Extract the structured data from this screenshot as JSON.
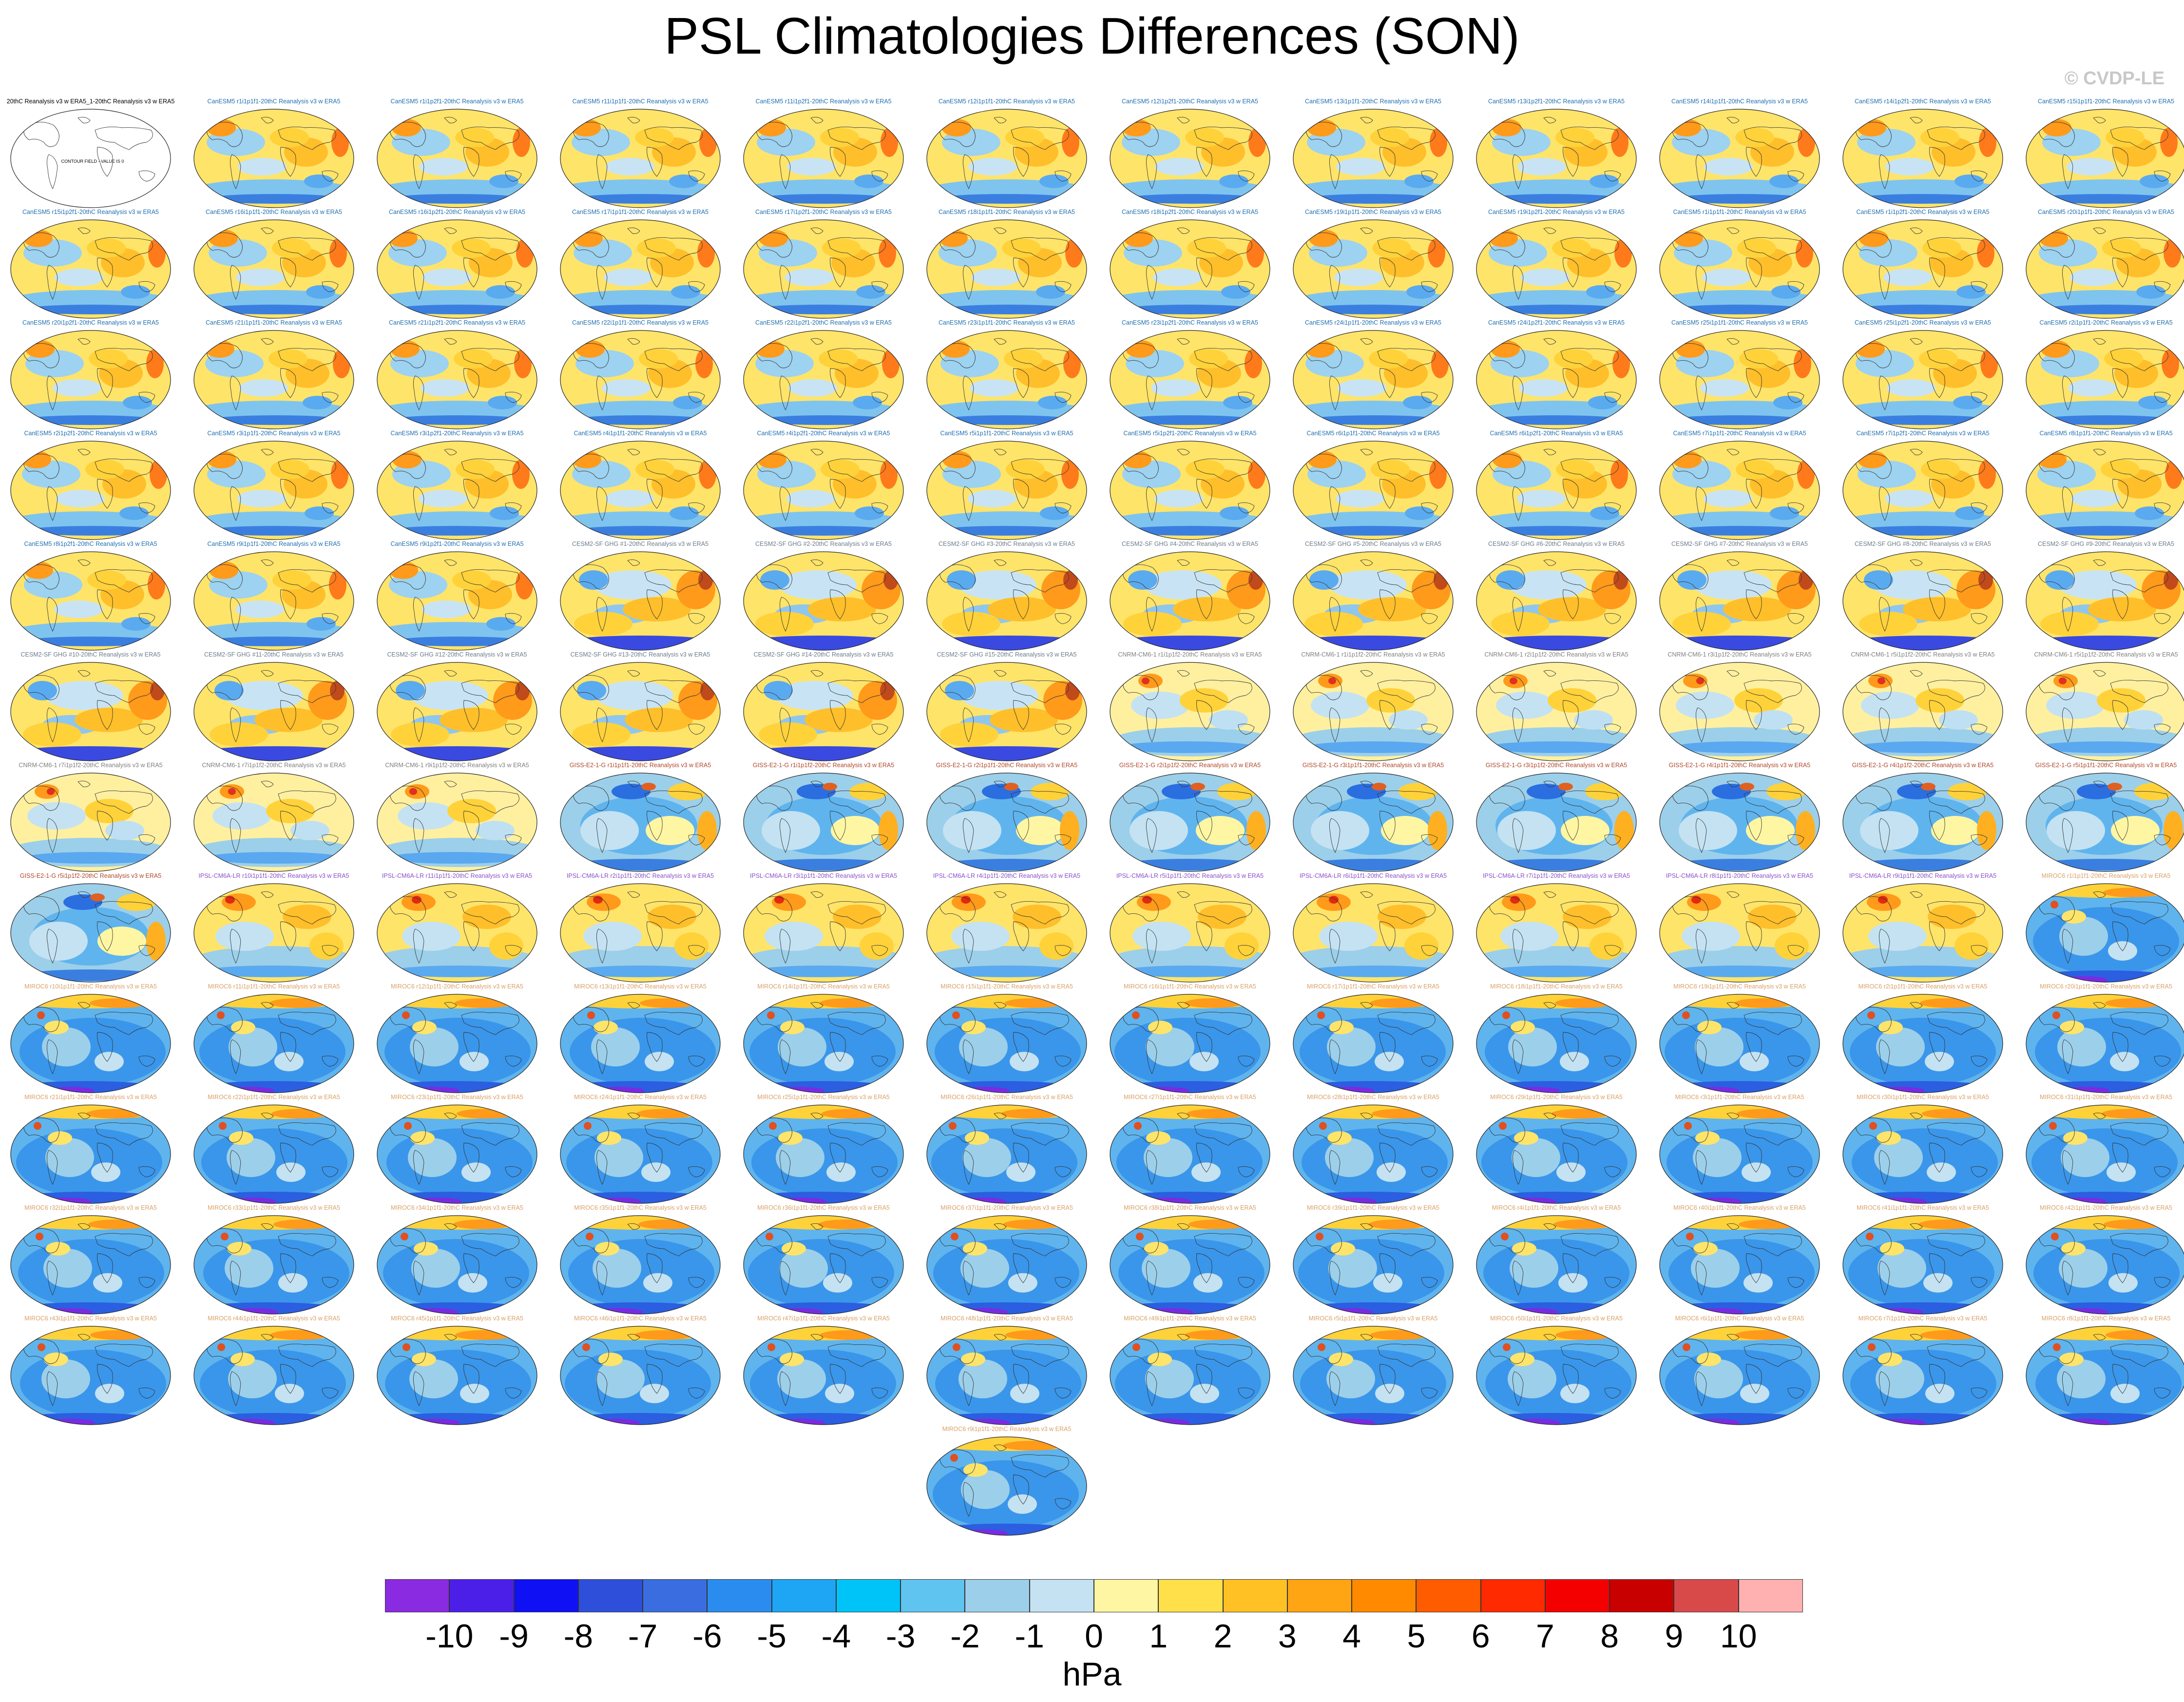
{
  "title": "PSL Climatologies Differences (SON)",
  "watermark": "© CVDP-LE",
  "units": "hPa",
  "colorbar": {
    "labels": [
      "-10",
      "-9",
      "-8",
      "-7",
      "-6",
      "-5",
      "-4",
      "-3",
      "-2",
      "-1",
      "0",
      "1",
      "2",
      "3",
      "4",
      "5",
      "6",
      "7",
      "8",
      "9",
      "10"
    ],
    "colors": [
      "#8a2be2",
      "#4b1fe8",
      "#1010f5",
      "#2e4fd9",
      "#3a6ee0",
      "#2b8cf0",
      "#1ea6f5",
      "#00c3f7",
      "#5fc4f0",
      "#9ccfea",
      "#c4e2f2",
      "#fff6a3",
      "#ffe04a",
      "#ffc124",
      "#ffa412",
      "#ff8a00",
      "#ff5c00",
      "#ff2a00",
      "#f50000",
      "#c80000",
      "#d84a4a",
      "#ffb0b0"
    ]
  },
  "panel_titles": [
    "20thC Reanalysis v3 w ERA5_1-20thC Reanalysis v3 w ERA5",
    "CanESM5 r1i1p1f1-20thC Reanalysis v3 w ERA5",
    "CanESM5 r1i1p2f1-20thC Reanalysis v3 w ERA5",
    "CanESM5 r11i1p1f1-20thC Reanalysis v3 w ERA5",
    "CanESM5 r11i1p2f1-20thC Reanalysis v3 w ERA5",
    "CanESM5 r12i1p1f1-20thC Reanalysis v3 w ERA5",
    "CanESM5 r12i1p2f1-20thC Reanalysis v3 w ERA5",
    "CanESM5 r13i1p1f1-20thC Reanalysis v3 w ERA5",
    "CanESM5 r13i1p2f1-20thC Reanalysis v3 w ERA5",
    "CanESM5 r14i1p1f1-20thC Reanalysis v3 w ERA5",
    "CanESM5 r14i1p2f1-20thC Reanalysis v3 w ERA5",
    "CanESM5 r15i1p1f1-20thC Reanalysis v3 w ERA5",
    "CanESM5 r15i1p2f1-20thC Reanalysis v3 w ERA5",
    "CanESM5 r16i1p1f1-20thC Reanalysis v3 w ERA5",
    "CanESM5 r16i1p2f1-20thC Reanalysis v3 w ERA5",
    "CanESM5 r17i1p1f1-20thC Reanalysis v3 w ERA5",
    "CanESM5 r17i1p2f1-20thC Reanalysis v3 w ERA5",
    "CanESM5 r18i1p1f1-20thC Reanalysis v3 w ERA5",
    "CanESM5 r18i1p2f1-20thC Reanalysis v3 w ERA5",
    "CanESM5 r19i1p1f1-20thC Reanalysis v3 w ERA5",
    "CanESM5 r19i1p2f1-20thC Reanalysis v3 w ERA5",
    "CanESM5 r1i1p1f1-20thC Reanalysis v3 w ERA5",
    "CanESM5 r1i1p2f1-20thC Reanalysis v3 w ERA5",
    "CanESM5 r20i1p1f1-20thC Reanalysis v3 w ERA5",
    "CanESM5 r20i1p2f1-20thC Reanalysis v3 w ERA5",
    "CanESM5 r21i1p1f1-20thC Reanalysis v3 w ERA5",
    "CanESM5 r21i1p2f1-20thC Reanalysis v3 w ERA5",
    "CanESM5 r22i1p1f1-20thC Reanalysis v3 w ERA5",
    "CanESM5 r22i1p2f1-20thC Reanalysis v3 w ERA5",
    "CanESM5 r23i1p1f1-20thC Reanalysis v3 w ERA5",
    "CanESM5 r23i1p2f1-20thC Reanalysis v3 w ERA5",
    "CanESM5 r24i1p1f1-20thC Reanalysis v3 w ERA5",
    "CanESM5 r24i1p2f1-20thC Reanalysis v3 w ERA5",
    "CanESM5 r25i1p1f1-20thC Reanalysis v3 w ERA5",
    "CanESM5 r25i1p2f1-20thC Reanalysis v3 w ERA5",
    "CanESM5 r2i1p1f1-20thC Reanalysis v3 w ERA5",
    "CanESM5 r2i1p2f1-20thC Reanalysis v3 w ERA5",
    "CanESM5 r3i1p1f1-20thC Reanalysis v3 w ERA5",
    "CanESM5 r3i1p2f1-20thC Reanalysis v3 w ERA5",
    "CanESM5 r4i1p1f1-20thC Reanalysis v3 w ERA5",
    "CanESM5 r4i1p2f1-20thC Reanalysis v3 w ERA5",
    "CanESM5 r5i1p1f1-20thC Reanalysis v3 w ERA5",
    "CanESM5 r5i1p2f1-20thC Reanalysis v3 w ERA5",
    "CanESM5 r6i1p1f1-20thC Reanalysis v3 w ERA5",
    "CanESM5 r6i1p2f1-20thC Reanalysis v3 w ERA5",
    "CanESM5 r7i1p1f1-20thC Reanalysis v3 w ERA5",
    "CanESM5 r7i1p2f1-20thC Reanalysis v3 w ERA5",
    "CanESM5 r8i1p1f1-20thC Reanalysis v3 w ERA5",
    "CanESM5 r8i1p2f1-20thC Reanalysis v3 w ERA5",
    "CanESM5 r9i1p1f1-20thC Reanalysis v3 w ERA5",
    "CanESM5 r9i1p2f1-20thC Reanalysis v3 w ERA5",
    "CESM2-SF GHG #1-20thC Reanalysis v3 w ERA5",
    "CESM2-SF GHG #2-20thC Reanalysis v3 w ERA5",
    "CESM2-SF GHG #3-20thC Reanalysis v3 w ERA5",
    "CESM2-SF GHG #4-20thC Reanalysis v3 w ERA5",
    "CESM2-SF GHG #5-20thC Reanalysis v3 w ERA5",
    "CESM2-SF GHG #6-20thC Reanalysis v3 w ERA5",
    "CESM2-SF GHG #7-20thC Reanalysis v3 w ERA5",
    "CESM2-SF GHG #8-20thC Reanalysis v3 w ERA5",
    "CESM2-SF GHG #9-20thC Reanalysis v3 w ERA5",
    "CESM2-SF GHG #10-20thC Reanalysis v3 w ERA5",
    "CESM2-SF GHG #11-20thC Reanalysis v3 w ERA5",
    "CESM2-SF GHG #12-20thC Reanalysis v3 w ERA5",
    "CESM2-SF GHG #13-20thC Reanalysis v3 w ERA5",
    "CESM2-SF GHG #14-20thC Reanalysis v3 w ERA5",
    "CESM2-SF GHG #15-20thC Reanalysis v3 w ERA5",
    "CNRM-CM6-1 r1i1p1f2-20thC Reanalysis v3 w ERA5",
    "CNRM-CM6-1 r1i1p1f2-20thC Reanalysis v3 w ERA5",
    "CNRM-CM6-1 r2i1p1f2-20thC Reanalysis v3 w ERA5",
    "CNRM-CM6-1 r3i1p1f2-20thC Reanalysis v3 w ERA5",
    "CNRM-CM6-1 r5i1p1f2-20thC Reanalysis v3 w ERA5",
    "CNRM-CM6-1 r5i1p1f2-20thC Reanalysis v3 w ERA5",
    "CNRM-CM6-1 r7i1p1f2-20thC Reanalysis v3 w ERA5",
    "CNRM-CM6-1 r7i1p1f2-20thC Reanalysis v3 w ERA5",
    "CNRM-CM6-1 r9i1p1f2-20thC Reanalysis v3 w ERA5",
    "GISS-E2-1-G r1i1p1f1-20thC Reanalysis v3 w ERA5",
    "GISS-E2-1-G r1i1p1f2-20thC Reanalysis v3 w ERA5",
    "GISS-E2-1-G r2i1p1f1-20thC Reanalysis v3 w ERA5",
    "GISS-E2-1-G r2i1p1f2-20thC Reanalysis v3 w ERA5",
    "GISS-E2-1-G r3i1p1f1-20thC Reanalysis v3 w ERA5",
    "GISS-E2-1-G r3i1p1f2-20thC Reanalysis v3 w ERA5",
    "GISS-E2-1-G r4i1p1f1-20thC Reanalysis v3 w ERA5",
    "GISS-E2-1-G r4i1p1f2-20thC Reanalysis v3 w ERA5",
    "GISS-E2-1-G r5i1p1f1-20thC Reanalysis v3 w ERA5",
    "GISS-E2-1-G r5i1p1f2-20thC Reanalysis v3 w ERA5",
    "IPSL-CM6A-LR r10i1p1f1-20thC Reanalysis v3 w ERA5",
    "IPSL-CM6A-LR r11i1p1f1-20thC Reanalysis v3 w ERA5",
    "IPSL-CM6A-LR r2i1p1f1-20thC Reanalysis v3 w ERA5",
    "IPSL-CM6A-LR r3i1p1f1-20thC Reanalysis v3 w ERA5",
    "IPSL-CM6A-LR r4i1p1f1-20thC Reanalysis v3 w ERA5",
    "IPSL-CM6A-LR r5i1p1f1-20thC Reanalysis v3 w ERA5",
    "IPSL-CM6A-LR r6i1p1f1-20thC Reanalysis v3 w ERA5",
    "IPSL-CM6A-LR r7i1p1f1-20thC Reanalysis v3 w ERA5",
    "IPSL-CM6A-LR r8i1p1f1-20thC Reanalysis v3 w ERA5",
    "IPSL-CM6A-LR r9i1p1f1-20thC Reanalysis v3 w ERA5",
    "MIROC6 r1i1p1f1-20thC Reanalysis v3 w ERA5",
    "MIROC6 r10i1p1f1-20thC Reanalysis v3 w ERA5",
    "MIROC6 r11i1p1f1-20thC Reanalysis v3 w ERA5",
    "MIROC6 r12i1p1f1-20thC Reanalysis v3 w ERA5",
    "MIROC6 r13i1p1f1-20thC Reanalysis v3 w ERA5",
    "MIROC6 r14i1p1f1-20thC Reanalysis v3 w ERA5",
    "MIROC6 r15i1p1f1-20thC Reanalysis v3 w ERA5",
    "MIROC6 r16i1p1f1-20thC Reanalysis v3 w ERA5",
    "MIROC6 r17i1p1f1-20thC Reanalysis v3 w ERA5",
    "MIROC6 r18i1p1f1-20thC Reanalysis v3 w ERA5",
    "MIROC6 r19i1p1f1-20thC Reanalysis v3 w ERA5",
    "MIROC6 r2i1p1f1-20thC Reanalysis v3 w ERA5",
    "MIROC6 r20i1p1f1-20thC Reanalysis v3 w ERA5",
    "MIROC6 r21i1p1f1-20thC Reanalysis v3 w ERA5",
    "MIROC6 r22i1p1f1-20thC Reanalysis v3 w ERA5",
    "MIROC6 r23i1p1f1-20thC Reanalysis v3 w ERA5",
    "MIROC6 r24i1p1f1-20thC Reanalysis v3 w ERA5",
    "MIROC6 r25i1p1f1-20thC Reanalysis v3 w ERA5",
    "MIROC6 r26i1p1f1-20thC Reanalysis v3 w ERA5",
    "MIROC6 r27i1p1f1-20thC Reanalysis v3 w ERA5",
    "MIROC6 r28i1p1f1-20thC Reanalysis v3 w ERA5",
    "MIROC6 r29i1p1f1-20thC Reanalysis v3 w ERA5",
    "MIROC6 r3i1p1f1-20thC Reanalysis v3 w ERA5",
    "MIROC6 r30i1p1f1-20thC Reanalysis v3 w ERA5",
    "MIROC6 r31i1p1f1-20thC Reanalysis v3 w ERA5",
    "MIROC6 r32i1p1f1-20thC Reanalysis v3 w ERA5",
    "MIROC6 r33i1p1f1-20thC Reanalysis v3 w ERA5",
    "MIROC6 r34i1p1f1-20thC Reanalysis v3 w ERA5",
    "MIROC6 r35i1p1f1-20thC Reanalysis v3 w ERA5",
    "MIROC6 r36i1p1f1-20thC Reanalysis v3 w ERA5",
    "MIROC6 r37i1p1f1-20thC Reanalysis v3 w ERA5",
    "MIROC6 r38i1p1f1-20thC Reanalysis v3 w ERA5",
    "MIROC6 r39i1p1f1-20thC Reanalysis v3 w ERA5",
    "MIROC6 r4i1p1f1-20thC Reanalysis v3 w ERA5",
    "MIROC6 r40i1p1f1-20thC Reanalysis v3 w ERA5",
    "MIROC6 r41i1p1f1-20thC Reanalysis v3 w ERA5",
    "MIROC6 r42i1p1f1-20thC Reanalysis v3 w ERA5",
    "MIROC6 r43i1p1f1-20thC Reanalysis v3 w ERA5",
    "MIROC6 r44i1p1f1-20thC Reanalysis v3 w ERA5",
    "MIROC6 r45i1p1f1-20thC Reanalysis v3 w ERA5",
    "MIROC6 r46i1p1f1-20thC Reanalysis v3 w ERA5",
    "MIROC6 r47i1p1f1-20thC Reanalysis v3 w ERA5",
    "MIROC6 r48i1p1f1-20thC Reanalysis v3 w ERA5",
    "MIROC6 r49i1p1f1-20thC Reanalysis v3 w ERA5",
    "MIROC6 r5i1p1f1-20thC Reanalysis v3 w ERA5",
    "MIROC6 r50i1p1f1-20thC Reanalysis v3 w ERA5",
    "MIROC6 r6i1p1f1-20thC Reanalysis v3 w ERA5",
    "MIROC6 r7i1p1f1-20thC Reanalysis v3 w ERA5",
    "MIROC6 r8i1p1f1-20thC Reanalysis v3 w ERA5",
    "MIROC6 r9i1p1f1-20thC Reanalysis v3 w ERA5"
  ],
  "reference_panel_note": "CONTOUR FIELD - VALUE IS 0",
  "model_title_colors": {
    "ref": "#000000",
    "CanESM5": "#1f6fb0",
    "CESM2-SF GHG": "#6b7b8c",
    "CNRM-CM6-1": "#7f7f7f",
    "GISS-E2-1-G": "#b0472a",
    "IPSL-CM6A-LR": "#8a4fc9",
    "MIROC6": "#d9a066"
  }
}
